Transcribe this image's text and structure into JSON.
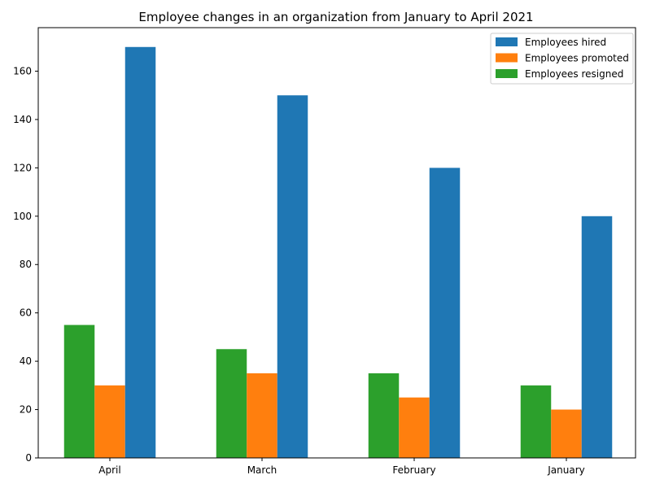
{
  "chart_data": {
    "type": "bar",
    "title": "Employee changes in an organization from January to April 2021",
    "xlabel": "",
    "ylabel": "",
    "categories": [
      "April",
      "March",
      "February",
      "January"
    ],
    "ylim": [
      0,
      178
    ],
    "yticks": [
      0,
      20,
      40,
      60,
      80,
      100,
      120,
      140,
      160
    ],
    "grid": false,
    "legend_position": "top-right",
    "series": [
      {
        "name": "Employees resigned",
        "color": "#2ca02c",
        "values": [
          55,
          45,
          35,
          30
        ]
      },
      {
        "name": "Employees promoted",
        "color": "#ff7f0e",
        "values": [
          30,
          35,
          25,
          20
        ]
      },
      {
        "name": "Employees hired",
        "color": "#1f77b4",
        "values": [
          170,
          150,
          120,
          100
        ]
      }
    ],
    "legend_order": [
      "Employees hired",
      "Employees promoted",
      "Employees resigned"
    ]
  }
}
